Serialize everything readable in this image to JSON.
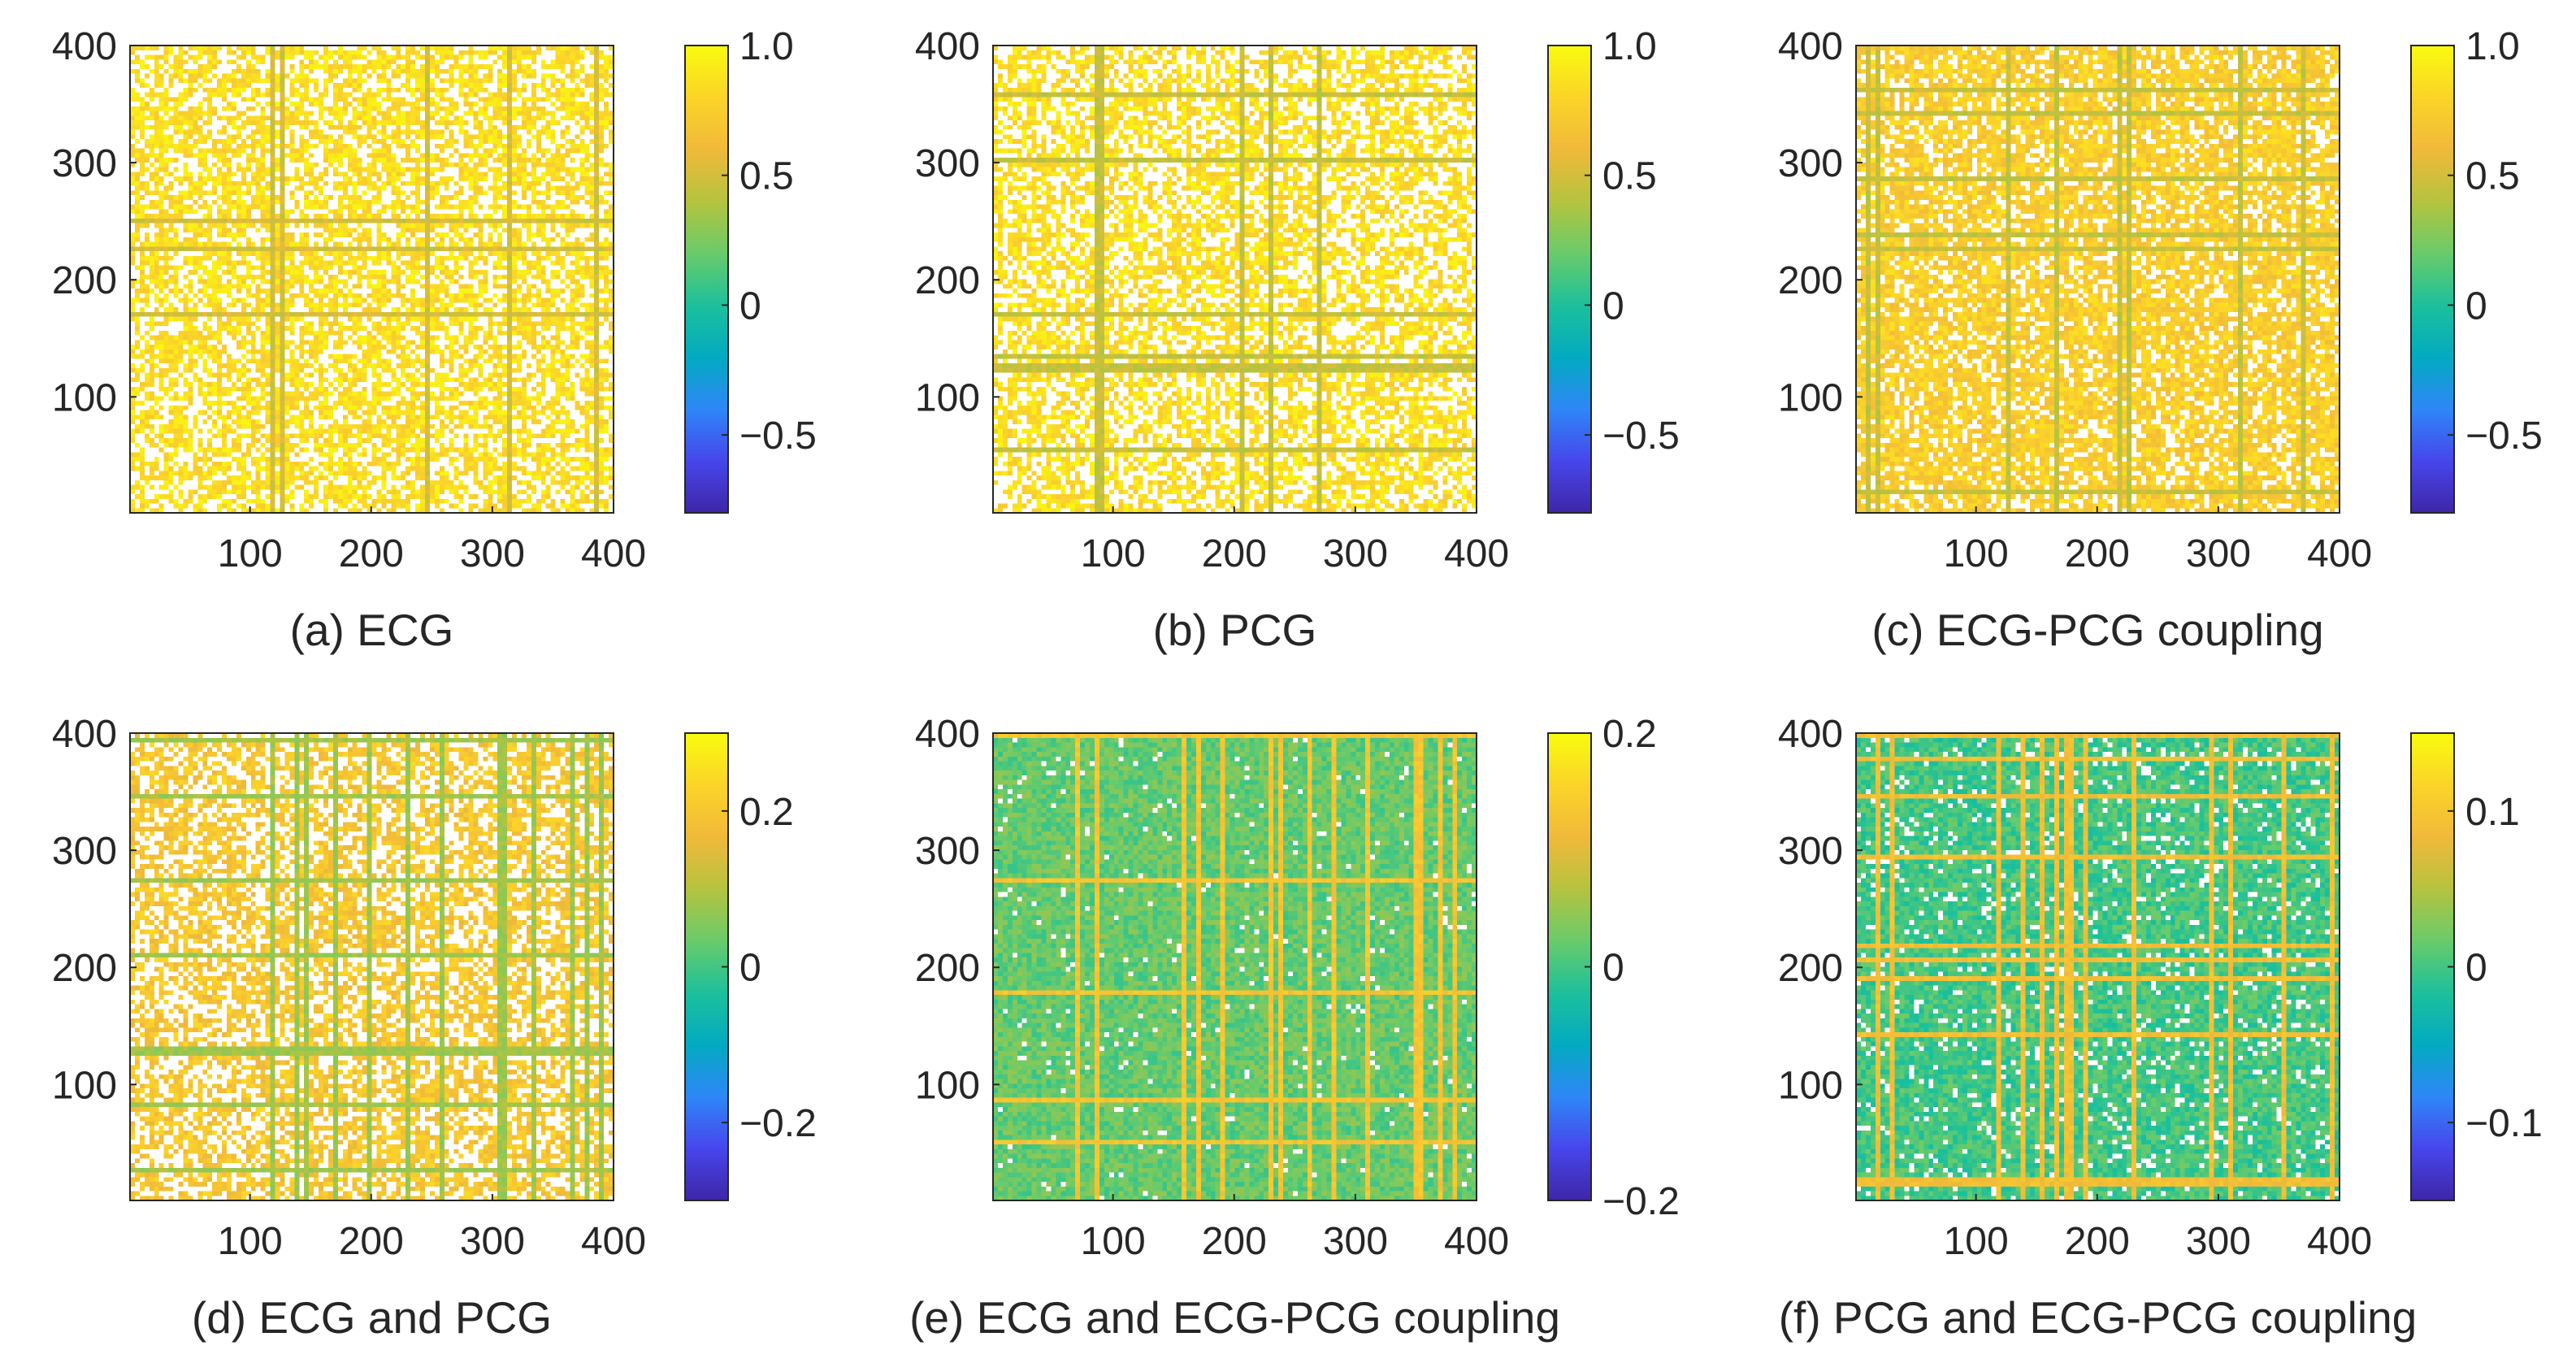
{
  "figure": {
    "colormap": "parula",
    "colormap_stops": [
      "#3e26a8",
      "#4746eb",
      "#2e87f7",
      "#03aac1",
      "#1cc09b",
      "#6acb6a",
      "#b5c33f",
      "#f1b93a",
      "#fbd429",
      "#f9fb0e"
    ]
  },
  "chart_data": [
    {
      "type": "heatmap",
      "title": "(a) ECG",
      "x_ticks": [
        100,
        200,
        300,
        400
      ],
      "y_ticks": [
        100,
        200,
        300,
        400
      ],
      "xlim": [
        1,
        400
      ],
      "ylim": [
        1,
        400
      ],
      "colorbar": {
        "clim": [
          -0.8,
          1.0
        ],
        "ticks": [
          1.0,
          0.5,
          0,
          -0.5
        ],
        "tick_labels": [
          "1.0",
          "0.5",
          "0",
          "−0.5"
        ]
      },
      "dominant_value": 0.85,
      "sparsity": 0.35,
      "accent_value": 0.5
    },
    {
      "type": "heatmap",
      "title": "(b) PCG",
      "x_ticks": [
        100,
        200,
        300,
        400
      ],
      "y_ticks": [
        100,
        200,
        300,
        400
      ],
      "xlim": [
        1,
        400
      ],
      "ylim": [
        1,
        400
      ],
      "colorbar": {
        "clim": [
          -0.8,
          1.0
        ],
        "ticks": [
          1.0,
          0.5,
          0,
          -0.5
        ],
        "tick_labels": [
          "1.0",
          "0.5",
          "0",
          "−0.5"
        ]
      },
      "dominant_value": 0.85,
      "sparsity": 0.4,
      "accent_value": 0.45
    },
    {
      "type": "heatmap",
      "title": "(c) ECG-PCG coupling",
      "x_ticks": [
        100,
        200,
        300,
        400
      ],
      "y_ticks": [
        100,
        200,
        300,
        400
      ],
      "xlim": [
        1,
        400
      ],
      "ylim": [
        1,
        400
      ],
      "colorbar": {
        "clim": [
          -0.8,
          1.0
        ],
        "ticks": [
          1.0,
          0.5,
          0,
          -0.5
        ],
        "tick_labels": [
          "1.0",
          "0.5",
          "0",
          "−0.5"
        ]
      },
      "dominant_value": 0.75,
      "sparsity": 0.22,
      "accent_value": 0.45
    },
    {
      "type": "heatmap",
      "title": "(d) ECG and PCG",
      "x_ticks": [
        100,
        200,
        300,
        400
      ],
      "y_ticks": [
        100,
        200,
        300,
        400
      ],
      "xlim": [
        1,
        400
      ],
      "ylim": [
        1,
        400
      ],
      "colorbar": {
        "clim": [
          -0.3,
          0.3
        ],
        "ticks": [
          0.2,
          0,
          -0.2
        ],
        "tick_labels": [
          "0.2",
          "0",
          "−0.2"
        ]
      },
      "dominant_value": 0.2,
      "sparsity": 0.4,
      "accent_value": 0.08
    },
    {
      "type": "heatmap",
      "title": "(e) ECG and ECG-PCG coupling",
      "x_ticks": [
        100,
        200,
        300,
        400
      ],
      "y_ticks": [
        100,
        200,
        300,
        400
      ],
      "xlim": [
        1,
        400
      ],
      "ylim": [
        1,
        400
      ],
      "colorbar": {
        "clim": [
          -0.2,
          0.2
        ],
        "ticks": [
          0.2,
          0,
          -0.2
        ],
        "tick_labels": [
          "0.2",
          "0",
          "−0.2"
        ]
      },
      "dominant_value": 0.02,
      "sparsity": 0.03,
      "accent_value": 0.13
    },
    {
      "type": "heatmap",
      "title": "(f) PCG and ECG-PCG coupling",
      "x_ticks": [
        100,
        200,
        300,
        400
      ],
      "y_ticks": [
        100,
        200,
        300,
        400
      ],
      "xlim": [
        1,
        400
      ],
      "ylim": [
        1,
        400
      ],
      "colorbar": {
        "clim": [
          -0.15,
          0.15
        ],
        "ticks": [
          0.1,
          0,
          -0.1
        ],
        "tick_labels": [
          "0.1",
          "0",
          "−0.1"
        ]
      },
      "dominant_value": 0.0,
      "sparsity": 0.1,
      "accent_value": 0.09
    }
  ]
}
